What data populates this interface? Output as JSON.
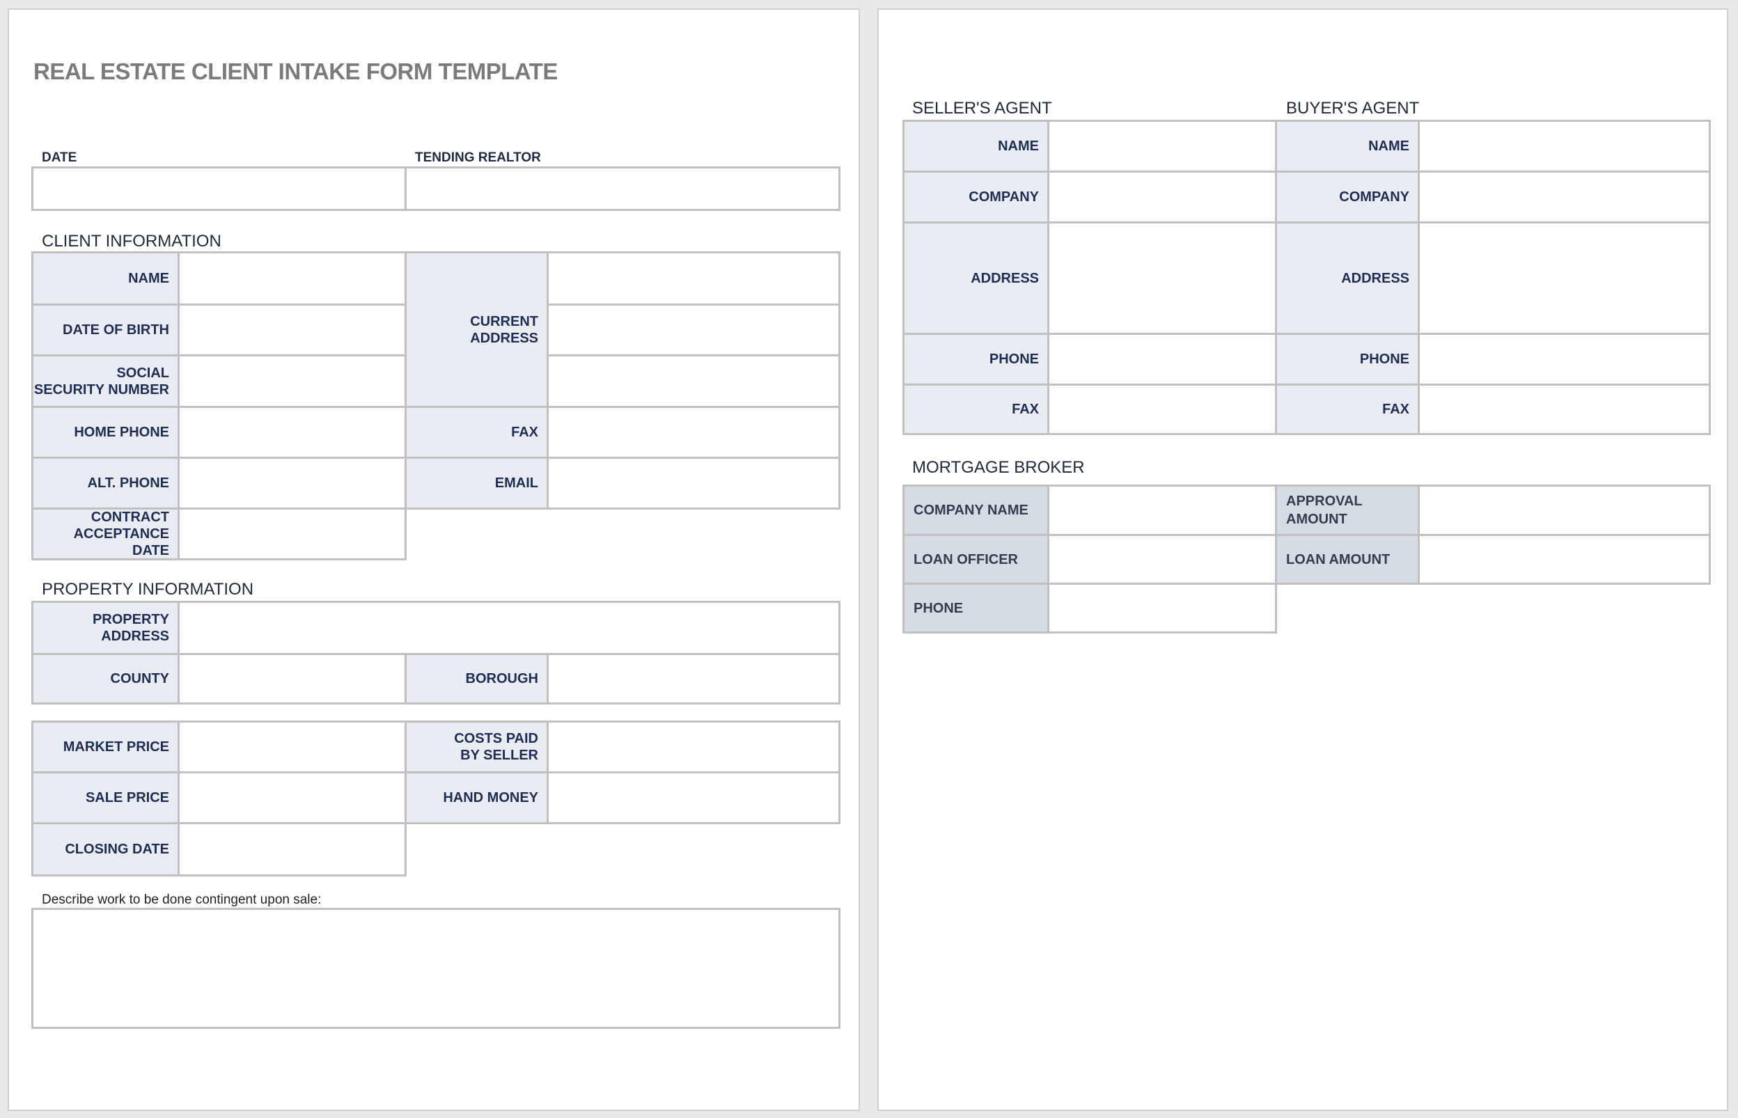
{
  "page1": {
    "title": "REAL ESTATE CLIENT INTAKE FORM TEMPLATE",
    "date_label": "DATE",
    "realtor_label": "TENDING REALTOR",
    "client_section": "CLIENT INFORMATION",
    "client": {
      "name": "NAME",
      "dob": "DATE OF BIRTH",
      "ssn_1": "SOCIAL",
      "ssn_2": "SECURITY NUMBER",
      "home_phone": "HOME PHONE",
      "alt_phone": "ALT. PHONE",
      "contract_1": "CONTRACT",
      "contract_2": "ACCEPTANCE DATE",
      "address_1": "CURRENT",
      "address_2": "ADDRESS",
      "fax": "FAX",
      "email": "EMAIL"
    },
    "property_section": "PROPERTY INFORMATION",
    "property": {
      "address_1": "PROPERTY",
      "address_2": "ADDRESS",
      "county": "COUNTY",
      "borough": "BOROUGH",
      "market_price": "MARKET PRICE",
      "costs_1": "COSTS PAID",
      "costs_2": "BY SELLER",
      "sale_price": "SALE PRICE",
      "hand_money": "HAND MONEY",
      "closing_date": "CLOSING DATE"
    },
    "describe_label": "Describe work to be done contingent upon sale:"
  },
  "page2": {
    "seller_section": "SELLER'S AGENT",
    "buyer_section": "BUYER'S AGENT",
    "agent": {
      "name": "NAME",
      "company": "COMPANY",
      "address": "ADDRESS",
      "phone": "PHONE",
      "fax": "FAX"
    },
    "mortgage_section": "MORTGAGE BROKER",
    "mortgage": {
      "company_name": "COMPANY NAME",
      "loan_officer": "LOAN OFFICER",
      "phone": "PHONE",
      "approval_1": "APPROVAL",
      "approval_2": "AMOUNT",
      "loan_amount": "LOAN AMOUNT"
    }
  },
  "colors": {
    "label_bg": "#e9edf3",
    "mortgage_label_bg": "#d6dce4",
    "label_text": "#1f2d54",
    "title": "#7b7b7b",
    "border": "#c0c0c0"
  }
}
